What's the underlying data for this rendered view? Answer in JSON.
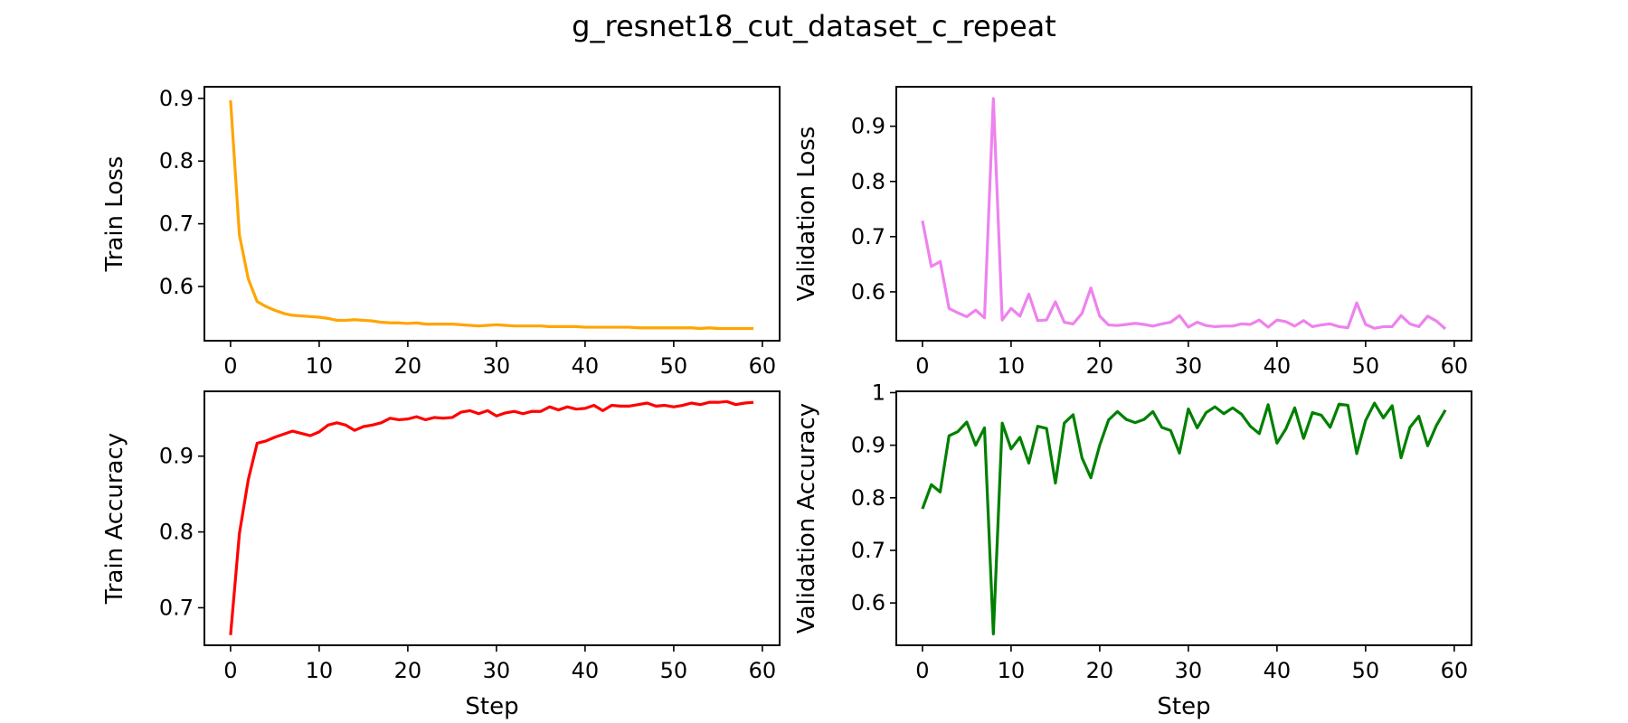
{
  "title": "g_resnet18_cut_dataset_c_repeat",
  "chart_data": [
    {
      "type": "line",
      "ylabel": "Train Loss",
      "xlabel": "",
      "color": "#ffa500",
      "xlim": [
        -2.95,
        61.95
      ],
      "ylim": [
        0.5135,
        0.9185
      ],
      "xticks": [
        0,
        10,
        20,
        30,
        40,
        50,
        60
      ],
      "yticks": [
        0.6,
        0.7,
        0.8,
        0.9
      ],
      "series": [
        {
          "values": [
            0.897,
            0.682,
            0.612,
            0.576,
            0.568,
            0.562,
            0.557,
            0.554,
            0.553,
            0.552,
            0.551,
            0.549,
            0.546,
            0.546,
            0.547,
            0.546,
            0.545,
            0.543,
            0.542,
            0.542,
            0.541,
            0.542,
            0.54,
            0.54,
            0.54,
            0.54,
            0.539,
            0.538,
            0.537,
            0.538,
            0.539,
            0.538,
            0.537,
            0.537,
            0.537,
            0.537,
            0.536,
            0.536,
            0.536,
            0.536,
            0.535,
            0.535,
            0.535,
            0.535,
            0.535,
            0.535,
            0.534,
            0.534,
            0.534,
            0.534,
            0.534,
            0.534,
            0.534,
            0.533,
            0.534,
            0.533,
            0.533,
            0.533,
            0.533,
            0.533
          ]
        }
      ]
    },
    {
      "type": "line",
      "ylabel": "Validation Loss",
      "xlabel": "",
      "color": "#ee82ee",
      "xlim": [
        -2.95,
        61.95
      ],
      "ylim": [
        0.5115,
        0.9715
      ],
      "xticks": [
        0,
        10,
        20,
        30,
        40,
        50,
        60
      ],
      "yticks": [
        0.6,
        0.7,
        0.8,
        0.9
      ],
      "series": [
        {
          "values": [
            0.729,
            0.646,
            0.655,
            0.57,
            0.562,
            0.555,
            0.567,
            0.553,
            0.95,
            0.549,
            0.57,
            0.556,
            0.596,
            0.548,
            0.549,
            0.582,
            0.545,
            0.542,
            0.561,
            0.607,
            0.556,
            0.54,
            0.539,
            0.541,
            0.543,
            0.541,
            0.538,
            0.542,
            0.545,
            0.557,
            0.536,
            0.545,
            0.539,
            0.537,
            0.538,
            0.538,
            0.542,
            0.541,
            0.549,
            0.536,
            0.549,
            0.546,
            0.538,
            0.548,
            0.537,
            0.54,
            0.542,
            0.537,
            0.535,
            0.58,
            0.541,
            0.534,
            0.537,
            0.537,
            0.557,
            0.542,
            0.537,
            0.556,
            0.547,
            0.533
          ]
        }
      ]
    },
    {
      "type": "line",
      "ylabel": "Train Accuracy",
      "xlabel": "Step",
      "color": "#ff0000",
      "xlim": [
        -2.95,
        61.95
      ],
      "ylim": [
        0.6505,
        0.9855
      ],
      "xticks": [
        0,
        10,
        20,
        30,
        40,
        50,
        60
      ],
      "yticks": [
        0.7,
        0.8,
        0.9
      ],
      "series": [
        {
          "values": [
            0.664,
            0.798,
            0.869,
            0.917,
            0.92,
            0.925,
            0.929,
            0.933,
            0.93,
            0.927,
            0.932,
            0.941,
            0.944,
            0.941,
            0.934,
            0.939,
            0.941,
            0.944,
            0.95,
            0.948,
            0.949,
            0.952,
            0.948,
            0.951,
            0.95,
            0.951,
            0.958,
            0.96,
            0.956,
            0.96,
            0.953,
            0.957,
            0.959,
            0.956,
            0.959,
            0.959,
            0.965,
            0.961,
            0.965,
            0.962,
            0.963,
            0.967,
            0.96,
            0.967,
            0.966,
            0.966,
            0.968,
            0.97,
            0.966,
            0.967,
            0.965,
            0.967,
            0.97,
            0.968,
            0.971,
            0.971,
            0.972,
            0.968,
            0.97,
            0.971
          ]
        }
      ]
    },
    {
      "type": "line",
      "ylabel": "Validation Accuracy",
      "xlabel": "Step",
      "color": "#008000",
      "xlim": [
        -2.95,
        61.95
      ],
      "ylim": [
        0.5195,
        1.0025
      ],
      "xticks": [
        0,
        10,
        20,
        30,
        40,
        50,
        60
      ],
      "yticks": [
        0.6,
        0.7,
        0.8,
        0.9,
        1.0
      ],
      "series": [
        {
          "values": [
            0.779,
            0.825,
            0.811,
            0.918,
            0.926,
            0.944,
            0.9,
            0.933,
            0.541,
            0.942,
            0.893,
            0.915,
            0.866,
            0.936,
            0.932,
            0.828,
            0.942,
            0.958,
            0.876,
            0.838,
            0.9,
            0.948,
            0.964,
            0.949,
            0.943,
            0.949,
            0.964,
            0.934,
            0.928,
            0.885,
            0.969,
            0.933,
            0.962,
            0.973,
            0.96,
            0.971,
            0.959,
            0.936,
            0.922,
            0.977,
            0.904,
            0.931,
            0.971,
            0.913,
            0.962,
            0.957,
            0.934,
            0.978,
            0.976,
            0.884,
            0.947,
            0.98,
            0.952,
            0.975,
            0.876,
            0.934,
            0.955,
            0.899,
            0.938,
            0.967
          ]
        }
      ]
    }
  ]
}
